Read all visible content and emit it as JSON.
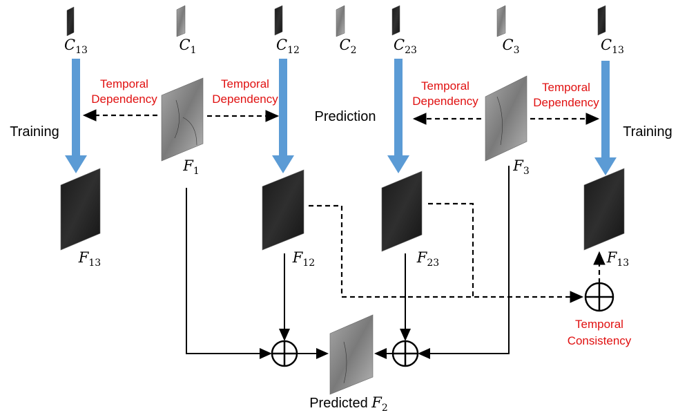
{
  "top_labels": [
    {
      "symbol": "C",
      "sub": "13"
    },
    {
      "symbol": "C",
      "sub": "1"
    },
    {
      "symbol": "C",
      "sub": "12"
    },
    {
      "symbol": "C",
      "sub": "2"
    },
    {
      "symbol": "C",
      "sub": "23"
    },
    {
      "symbol": "C",
      "sub": "3"
    },
    {
      "symbol": "C",
      "sub": "13"
    }
  ],
  "side_labels": [
    "Training",
    "Training"
  ],
  "prediction": "Prediction",
  "dependency_labels": [
    [
      "Temporal",
      "Dependency"
    ],
    [
      "Temporal",
      "Dependency"
    ],
    [
      "Temporal",
      "Dependency"
    ],
    [
      "Temporal",
      "Dependency"
    ]
  ],
  "feature_labels": [
    {
      "symbol": "F",
      "sub": "1"
    },
    {
      "symbol": "F",
      "sub": "3"
    },
    {
      "symbol": "F",
      "sub": "13"
    },
    {
      "symbol": "F",
      "sub": "12"
    },
    {
      "symbol": "F",
      "sub": "23"
    },
    {
      "symbol": "F",
      "sub": "13"
    }
  ],
  "consistency": [
    "Temporal",
    "Consistency"
  ],
  "predicted": {
    "text": "Predicted",
    "symbol": "F",
    "sub": "2"
  }
}
